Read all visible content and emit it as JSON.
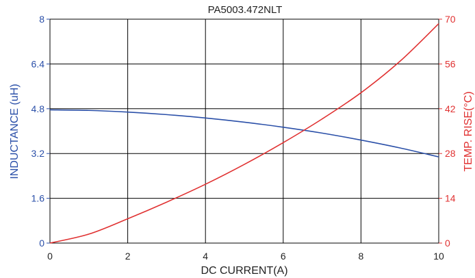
{
  "chart_data": {
    "type": "line",
    "title": "PA5003.472NLT",
    "xlabel": "DC CURRENT(A)",
    "ylabel_left": "INDUCTANCE (uH)",
    "ylabel_right": "TEMP. RISE(°C)",
    "xlim": [
      0,
      10
    ],
    "ylim_left": [
      0,
      8
    ],
    "ylim_right": [
      0,
      70
    ],
    "x_ticks": [
      "0",
      "2",
      "4",
      "6",
      "8",
      "10"
    ],
    "y_left_ticks": [
      "0",
      "1.6",
      "3.2",
      "4.8",
      "6.4",
      "8"
    ],
    "y_right_ticks": [
      "0",
      "14",
      "28",
      "42",
      "56",
      "70"
    ],
    "grid": true,
    "colors": {
      "inductance": "#2a4fa8",
      "temp_rise": "#e03131",
      "grid": "#000000"
    },
    "series": [
      {
        "axis": "left",
        "color": "#2a4fa8",
        "x": [
          0,
          1,
          2,
          3,
          4,
          5,
          6,
          7,
          8,
          9,
          10
        ],
        "values": [
          4.76,
          4.74,
          4.68,
          4.59,
          4.47,
          4.32,
          4.14,
          3.93,
          3.68,
          3.4,
          3.08
        ]
      },
      {
        "axis": "right",
        "color": "#e03131",
        "x": [
          0,
          1,
          2,
          3,
          4,
          5,
          6,
          7,
          8,
          9,
          10
        ],
        "values": [
          0,
          2.8,
          7.6,
          12.8,
          18.4,
          24.6,
          31.4,
          38.8,
          47.0,
          56.8,
          68.6
        ]
      }
    ]
  }
}
